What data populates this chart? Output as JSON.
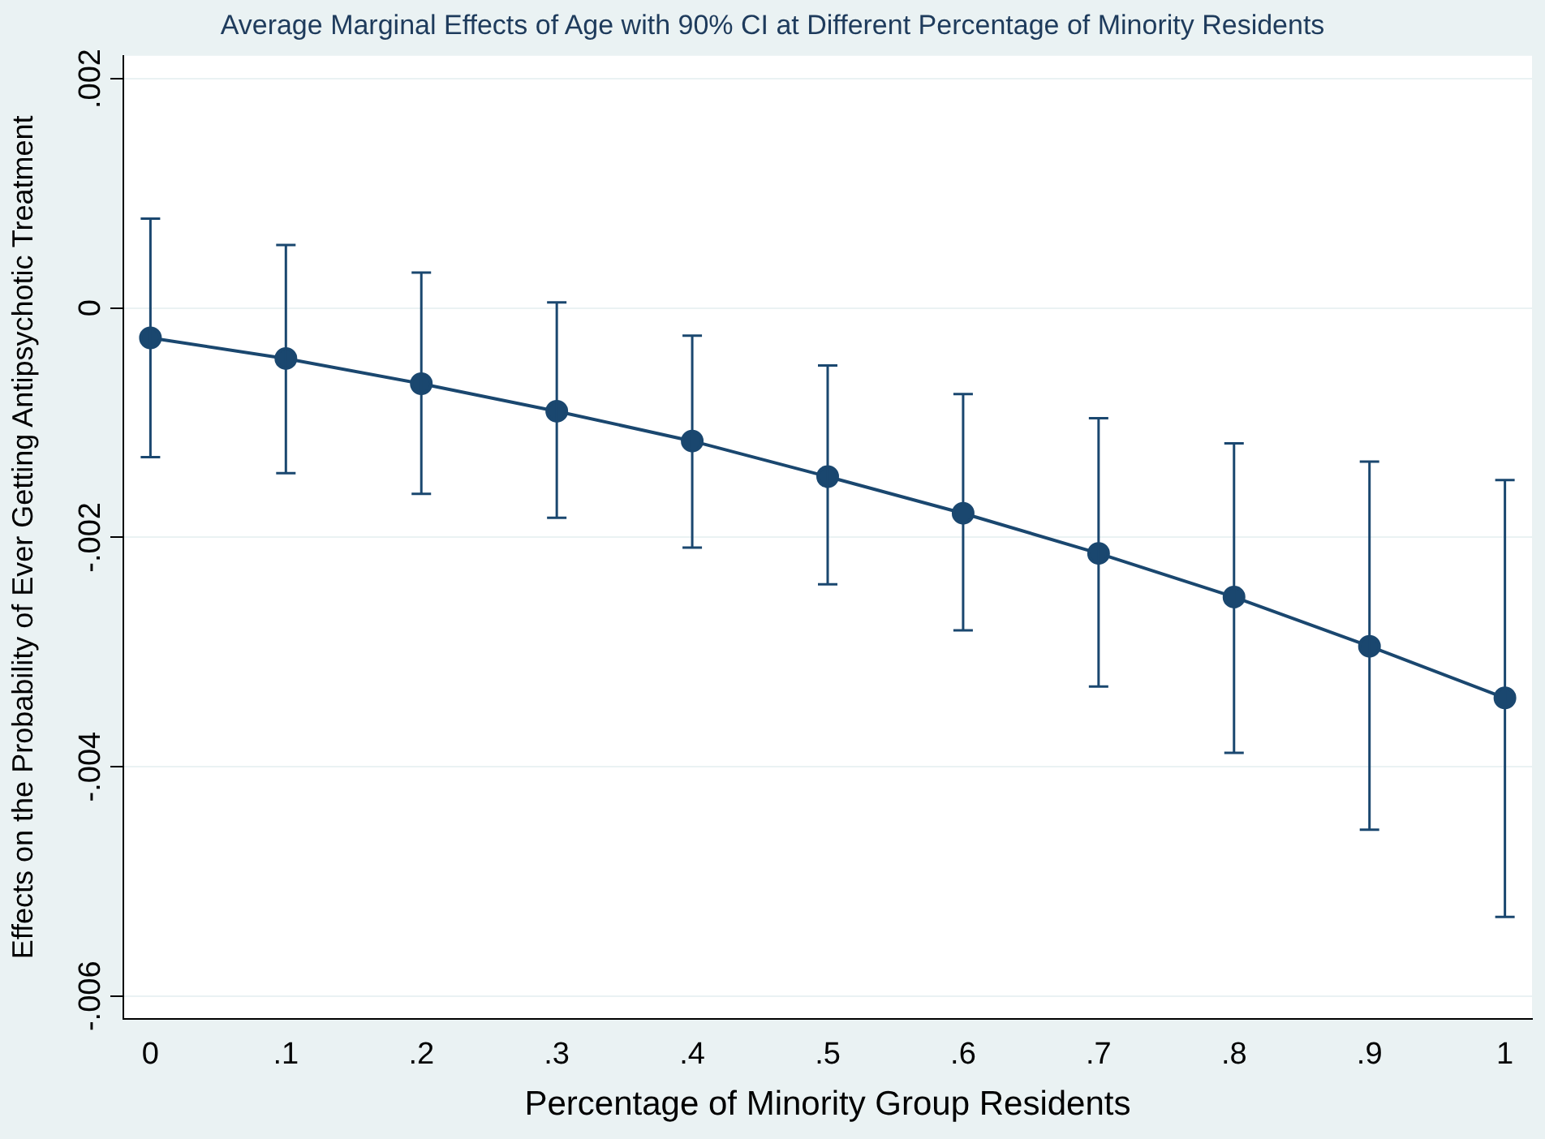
{
  "chart_data": {
    "type": "line",
    "title": "Average Marginal Effects of Age with 90% CI at Different Percentage of Minority Residents",
    "xlabel": "Percentage of Minority Group Residents",
    "ylabel": "Effects on the Probability of Ever Getting Antipsychotic Treatment",
    "x": [
      0,
      0.1,
      0.2,
      0.3,
      0.4,
      0.5,
      0.6,
      0.7,
      0.8,
      0.9,
      1
    ],
    "series": [
      {
        "color": "#1a476f",
        "values": [
          -0.00026,
          -0.00044,
          -0.00066,
          -0.0009,
          -0.00116,
          -0.00147,
          -0.00179,
          -0.00214,
          -0.00252,
          -0.00295,
          -0.0034
        ],
        "errors": [
          [
            -0.0013,
            0.00078
          ],
          [
            -0.00144,
            0.00055
          ],
          [
            -0.00162,
            0.00031
          ],
          [
            -0.00183,
            5e-05
          ],
          [
            -0.00209,
            -0.00024
          ],
          [
            -0.00241,
            -0.0005
          ],
          [
            -0.00281,
            -0.00075
          ],
          [
            -0.0033,
            -0.00096
          ],
          [
            -0.00388,
            -0.00118
          ],
          [
            -0.00455,
            -0.00134
          ],
          [
            -0.00531,
            -0.0015
          ]
        ]
      }
    ],
    "xlim": [
      -0.02,
      1.02
    ],
    "xticks": [
      {
        "value": 0,
        "label": "0"
      },
      {
        "value": 0.1,
        "label": ".1"
      },
      {
        "value": 0.2,
        "label": ".2"
      },
      {
        "value": 0.3,
        "label": ".3"
      },
      {
        "value": 0.4,
        "label": ".4"
      },
      {
        "value": 0.5,
        "label": ".5"
      },
      {
        "value": 0.6,
        "label": ".6"
      },
      {
        "value": 0.7,
        "label": ".7"
      },
      {
        "value": 0.8,
        "label": ".8"
      },
      {
        "value": 0.9,
        "label": ".9"
      },
      {
        "value": 1,
        "label": "1"
      }
    ],
    "ylim": [
      -0.0062,
      0.0022
    ],
    "yticks": [
      {
        "value": -0.006,
        "label": "-.006"
      },
      {
        "value": -0.004,
        "label": "-.004"
      },
      {
        "value": -0.002,
        "label": "-.002"
      },
      {
        "value": 0,
        "label": "0"
      },
      {
        "value": 0.002,
        "label": ".002"
      }
    ],
    "grid": "y",
    "legend": false,
    "marker": "circle",
    "line_style": "solid"
  }
}
